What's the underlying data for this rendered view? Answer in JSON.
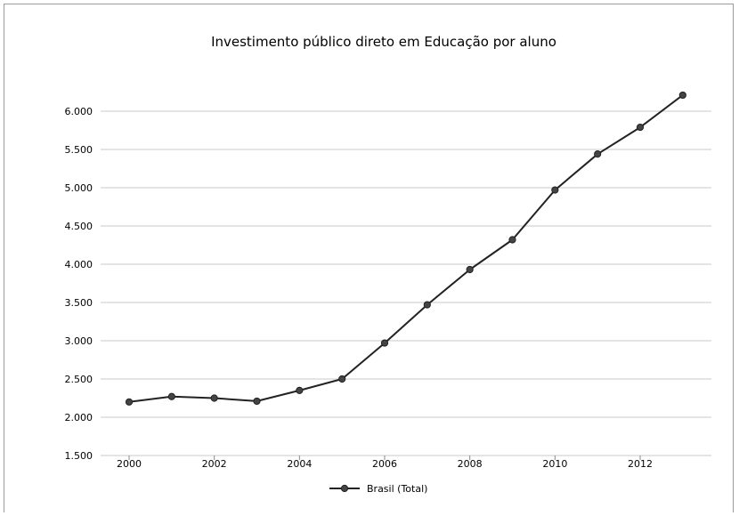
{
  "chart_data": {
    "type": "line",
    "title": "Investimento público direto em Educação por aluno",
    "xlabel": "",
    "ylabel": "",
    "x": [
      2000,
      2001,
      2002,
      2003,
      2004,
      2005,
      2006,
      2007,
      2008,
      2009,
      2010,
      2011,
      2012,
      2013
    ],
    "series": [
      {
        "name": "Brasil (Total)",
        "values": [
          2200,
          2270,
          2250,
          2210,
          2350,
          2500,
          2970,
          3470,
          3930,
          4320,
          4970,
          5440,
          5790,
          6210
        ]
      }
    ],
    "xlim": [
      1999.5,
      2013.6
    ],
    "ylim": [
      1500,
      6000
    ],
    "y_ticks": [
      "1.500",
      "2.000",
      "2.500",
      "3.000",
      "3.500",
      "4.000",
      "4.500",
      "5.000",
      "5.500",
      "6.000"
    ],
    "x_ticks": [
      "2000",
      "2002",
      "2004",
      "2006",
      "2008",
      "2010",
      "2012"
    ],
    "grid": true,
    "legend_position": "bottom",
    "line_color": "#222222",
    "grid_color": "#c8c8c8"
  }
}
